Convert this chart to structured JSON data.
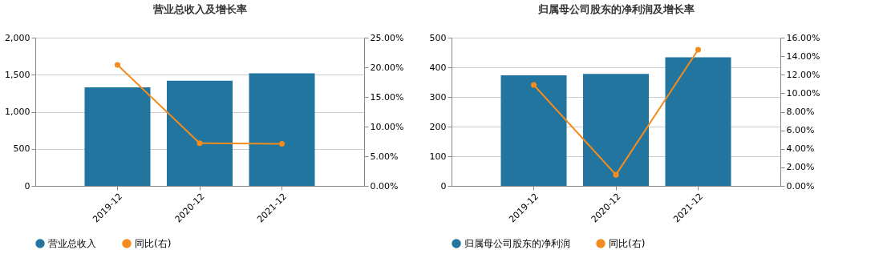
{
  "chart_data": [
    {
      "type": "bar",
      "title": "营业总收入及增长率",
      "categories": [
        "2019-12",
        "2020-12",
        "2021-12"
      ],
      "series": [
        {
          "name": "营业总收入",
          "color": "#21759f",
          "values": [
            1330,
            1420,
            1520
          ]
        },
        {
          "name": "同比(右)",
          "type": "line",
          "axis": "y2",
          "color": "#f28c1f",
          "values": [
            20.4,
            7.2,
            7.1
          ]
        }
      ],
      "ylim": [
        0,
        2000
      ],
      "yticks": [
        {
          "value": 0,
          "label": "0"
        },
        {
          "value": 500,
          "label": "500"
        },
        {
          "value": 1000,
          "label": "1,000"
        },
        {
          "value": 1500,
          "label": "1,500"
        },
        {
          "value": 2000,
          "label": "2,000"
        }
      ],
      "y2lim": [
        0,
        25
      ],
      "y2ticks": [
        {
          "value": 0,
          "label": "0.00%"
        },
        {
          "value": 5,
          "label": "5.00%"
        },
        {
          "value": 10,
          "label": "10.00%"
        },
        {
          "value": 15,
          "label": "15.00%"
        },
        {
          "value": 20,
          "label": "20.00%"
        },
        {
          "value": 25,
          "label": "25.00%"
        }
      ],
      "grid": "y",
      "legend": "bottom",
      "marker": "circle"
    },
    {
      "type": "bar",
      "title": "归属母公司股东的净利润及增长率",
      "categories": [
        "2019-12",
        "2020-12",
        "2021-12"
      ],
      "series": [
        {
          "name": "归属母公司股东的净利润",
          "color": "#21759f",
          "values": [
            373,
            378,
            434
          ]
        },
        {
          "name": "同比(右)",
          "type": "line",
          "axis": "y2",
          "color": "#f28c1f",
          "values": [
            10.9,
            1.2,
            14.7
          ]
        }
      ],
      "ylim": [
        0,
        500
      ],
      "yticks": [
        0,
        100,
        200,
        300,
        400,
        500
      ],
      "y2lim": [
        0,
        16
      ],
      "y2ticks": [
        {
          "value": 0,
          "label": "0.00%"
        },
        {
          "value": 2,
          "label": "2.00%"
        },
        {
          "value": 4,
          "label": "4.00%"
        },
        {
          "value": 6,
          "label": "6.00%"
        },
        {
          "value": 8,
          "label": "8.00%"
        },
        {
          "value": 10,
          "label": "10.00%"
        },
        {
          "value": 12,
          "label": "12.00%"
        },
        {
          "value": 14,
          "label": "14.00%"
        },
        {
          "value": 16,
          "label": "16.00%"
        }
      ],
      "grid": "y",
      "legend": "bottom",
      "marker": "circle"
    }
  ]
}
